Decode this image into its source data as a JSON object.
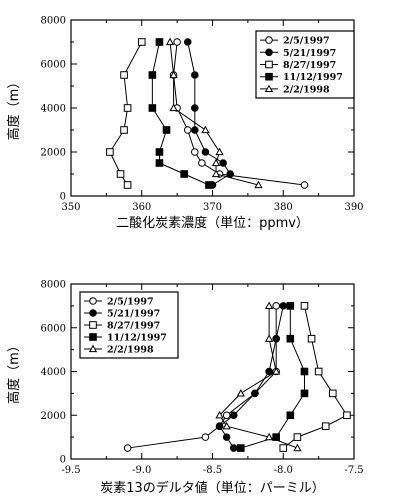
{
  "chart_data": [
    {
      "type": "line",
      "xlabel": "二酸化炭素濃度（単位：ppmv）",
      "ylabel": "高度（m）",
      "xlim": [
        350,
        390
      ],
      "ylim": [
        0,
        8000
      ],
      "xticks": [
        "350",
        "360",
        "370",
        "380",
        "390"
      ],
      "yticks": [
        "0",
        "2000",
        "4000",
        "6000",
        "8000"
      ],
      "grid": false,
      "legend_position": "top-right",
      "series": [
        {
          "name": "2/5/1997",
          "marker": "open-circle",
          "points": [
            [
              383,
              500
            ],
            [
              371,
              1000
            ],
            [
              368.5,
              1500
            ],
            [
              367.5,
              2000
            ],
            [
              366.5,
              3000
            ],
            [
              365,
              4000
            ],
            [
              364.5,
              5500
            ],
            [
              365,
              7000
            ]
          ]
        },
        {
          "name": "5/21/1997",
          "marker": "filled-circle",
          "points": [
            [
              370,
              500
            ],
            [
              372.5,
              1000
            ],
            [
              371.5,
              1500
            ],
            [
              369,
              2000
            ],
            [
              367.5,
              3000
            ],
            [
              367.5,
              4000
            ],
            [
              367.5,
              5500
            ],
            [
              366.5,
              7000
            ]
          ]
        },
        {
          "name": "8/27/1997",
          "marker": "open-square",
          "points": [
            [
              358,
              500
            ],
            [
              357,
              1000
            ],
            [
              355.5,
              2000
            ],
            [
              357.5,
              3000
            ],
            [
              358,
              4000
            ],
            [
              357.5,
              5500
            ],
            [
              360,
              7000
            ]
          ]
        },
        {
          "name": "11/12/1997",
          "marker": "filled-square",
          "points": [
            [
              369.5,
              500
            ],
            [
              366,
              1000
            ],
            [
              362.5,
              1500
            ],
            [
              362.5,
              2000
            ],
            [
              363.5,
              3000
            ],
            [
              361.5,
              4000
            ],
            [
              361.5,
              5500
            ],
            [
              362.5,
              7000
            ]
          ]
        },
        {
          "name": "2/2/1998",
          "marker": "open-triangle",
          "points": [
            [
              376.5,
              500
            ],
            [
              370.5,
              1000
            ],
            [
              370.5,
              1500
            ],
            [
              371,
              2000
            ],
            [
              369,
              3000
            ],
            [
              364.5,
              4000
            ],
            [
              364.5,
              5500
            ],
            [
              364,
              7000
            ]
          ]
        }
      ]
    },
    {
      "type": "line",
      "xlabel": "炭素13のデルタ値（単位：パーミル）",
      "ylabel": "高度（m）",
      "xlim": [
        -9.5,
        -7.5
      ],
      "ylim": [
        0,
        8000
      ],
      "xticks": [
        "-9.5",
        "-9.0",
        "-8.5",
        "-8.0",
        "-7.5"
      ],
      "yticks": [
        "0",
        "2000",
        "4000",
        "6000",
        "8000"
      ],
      "grid": false,
      "legend_position": "top-left",
      "series": [
        {
          "name": "2/5/1997",
          "marker": "open-circle",
          "points": [
            [
              -9.1,
              500
            ],
            [
              -8.55,
              1000
            ],
            [
              -8.45,
              1500
            ],
            [
              -8.4,
              2000
            ],
            [
              -8.2,
              3000
            ],
            [
              -8.05,
              4000
            ],
            [
              -8.05,
              5500
            ],
            [
              -8.05,
              7000
            ]
          ]
        },
        {
          "name": "5/21/1997",
          "marker": "filled-circle",
          "points": [
            [
              -8.35,
              500
            ],
            [
              -8.4,
              1000
            ],
            [
              -8.45,
              1500
            ],
            [
              -8.35,
              2000
            ],
            [
              -8.2,
              3000
            ],
            [
              -8.1,
              4000
            ],
            [
              -8.05,
              5500
            ],
            [
              -8.0,
              7000
            ]
          ]
        },
        {
          "name": "8/27/1997",
          "marker": "open-square",
          "points": [
            [
              -8.0,
              500
            ],
            [
              -7.9,
              1000
            ],
            [
              -7.7,
              1500
            ],
            [
              -7.55,
              2000
            ],
            [
              -7.65,
              3000
            ],
            [
              -7.75,
              4000
            ],
            [
              -7.8,
              5500
            ],
            [
              -7.85,
              7000
            ]
          ]
        },
        {
          "name": "11/12/1997",
          "marker": "filled-square",
          "points": [
            [
              -8.3,
              500
            ],
            [
              -8.05,
              1000
            ],
            [
              -7.95,
              2000
            ],
            [
              -7.85,
              3000
            ],
            [
              -7.85,
              4000
            ],
            [
              -7.95,
              5500
            ],
            [
              -7.95,
              7000
            ]
          ]
        },
        {
          "name": "2/2/1998",
          "marker": "open-triangle",
          "points": [
            [
              -7.9,
              500
            ],
            [
              -8.1,
              1000
            ],
            [
              -8.4,
              1500
            ],
            [
              -8.45,
              2000
            ],
            [
              -8.3,
              3000
            ],
            [
              -8.05,
              4000
            ],
            [
              -8.1,
              5500
            ],
            [
              -8.1,
              7000
            ]
          ]
        }
      ]
    }
  ]
}
